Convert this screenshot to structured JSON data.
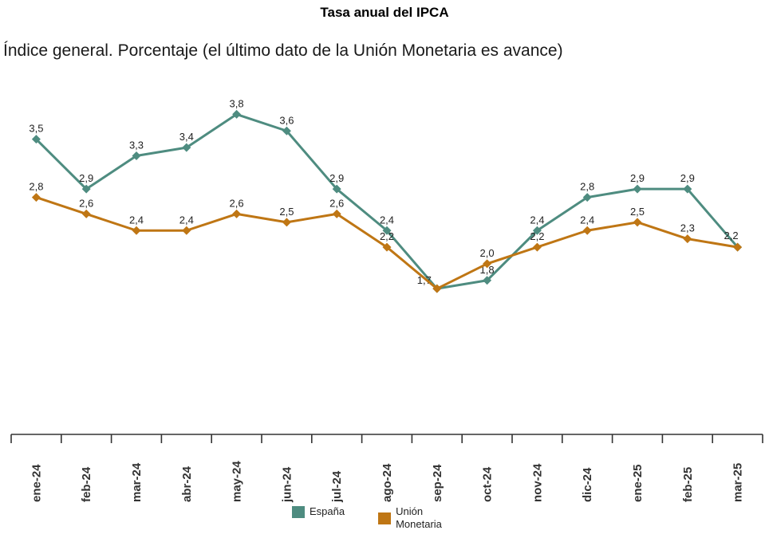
{
  "title": "Tasa anual del IPCA",
  "subtitle": "Índice general. Porcentaje (el último dato de la Unión Monetaria es avance)",
  "chart_data": {
    "type": "line",
    "title": "Tasa anual del IPCA",
    "subtitle": "Índice general. Porcentaje (el último dato de la Unión Monetaria es avance)",
    "categories": [
      "ene-24",
      "feb-24",
      "mar-24",
      "abr-24",
      "may-24",
      "jun-24",
      "jul-24",
      "ago-24",
      "sep-24",
      "oct-24",
      "nov-24",
      "dic-24",
      "ene-25",
      "feb-25",
      "mar-25"
    ],
    "series": [
      {
        "name": "España",
        "color": "#4e8c80",
        "values": [
          3.5,
          2.9,
          3.3,
          3.4,
          3.8,
          3.6,
          2.9,
          2.4,
          1.7,
          1.8,
          2.4,
          2.8,
          2.9,
          2.9,
          2.2
        ]
      },
      {
        "name": "Unión Monetaria",
        "color": "#bf7614",
        "values": [
          2.8,
          2.6,
          2.4,
          2.4,
          2.6,
          2.5,
          2.6,
          2.2,
          1.7,
          2.0,
          2.2,
          2.4,
          2.5,
          2.3,
          2.2
        ]
      }
    ],
    "ylim": [
      1.5,
      3.9
    ],
    "grid": false,
    "y_axis_shown": false,
    "data_labels": true,
    "decimal_separator": ",",
    "marker": "diamond",
    "legend_position": "bottom",
    "axis_color": "#333333",
    "label_color": "#222222"
  }
}
